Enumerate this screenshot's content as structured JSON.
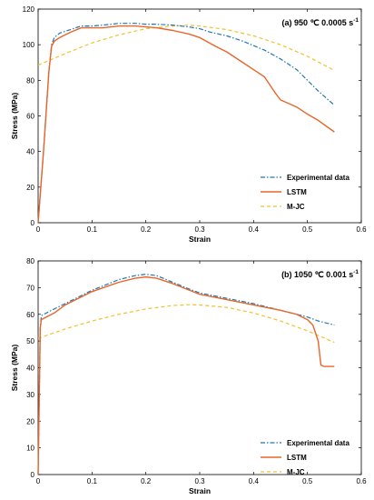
{
  "chart_data": [
    {
      "type": "line",
      "title_prefix": "(a) 950 ℃ 0.0005 s",
      "title_sup": "-1",
      "xlabel": "Strain",
      "ylabel": "Stress (MPa)",
      "xlim": [
        0,
        0.6
      ],
      "ylim": [
        0,
        120
      ],
      "xticks": [
        "0",
        "0.1",
        "0.2",
        "0.3",
        "0.4",
        "0.5",
        "0.6"
      ],
      "yticks": [
        "0",
        "20",
        "40",
        "60",
        "80",
        "100",
        "120"
      ],
      "legend_position": "lower-right",
      "series": [
        {
          "name": "Experimental data",
          "color": "#1f77b4",
          "style": "dashdot",
          "x": [
            0,
            0.01,
            0.02,
            0.025,
            0.03,
            0.04,
            0.05,
            0.06,
            0.08,
            0.1,
            0.12,
            0.15,
            0.18,
            0.2,
            0.22,
            0.25,
            0.28,
            0.3,
            0.32,
            0.35,
            0.38,
            0.4,
            0.42,
            0.45,
            0.48,
            0.5,
            0.52,
            0.55
          ],
          "y": [
            0,
            40,
            85,
            100,
            104,
            106.5,
            107.5,
            108.5,
            110.5,
            110.5,
            111,
            112,
            112,
            111.5,
            111.5,
            111,
            110,
            109,
            107,
            105,
            102,
            99.5,
            97,
            92,
            86,
            80,
            74,
            66
          ]
        },
        {
          "name": "LSTM",
          "color": "#e8652a",
          "style": "solid",
          "x": [
            0,
            0.01,
            0.02,
            0.025,
            0.03,
            0.04,
            0.05,
            0.06,
            0.08,
            0.1,
            0.12,
            0.15,
            0.18,
            0.2,
            0.22,
            0.25,
            0.28,
            0.3,
            0.33,
            0.35,
            0.38,
            0.4,
            0.42,
            0.44,
            0.45,
            0.48,
            0.5,
            0.52,
            0.55
          ],
          "y": [
            0,
            40,
            85,
            99,
            102,
            104,
            105.5,
            107,
            109.5,
            109.5,
            109.5,
            110.5,
            110.5,
            110,
            109.5,
            108,
            106,
            104,
            99,
            96,
            90,
            86,
            82,
            73,
            69,
            65,
            61,
            57.5,
            51
          ]
        },
        {
          "name": "M-JC",
          "color": "#f2c12e",
          "style": "dashed",
          "x": [
            0,
            0.05,
            0.1,
            0.15,
            0.2,
            0.25,
            0.28,
            0.3,
            0.35,
            0.4,
            0.45,
            0.5,
            0.55
          ],
          "y": [
            88.5,
            95,
            101,
            105.5,
            109,
            110.5,
            111,
            110.5,
            108.5,
            105,
            100,
            93.5,
            85.5
          ]
        }
      ]
    },
    {
      "type": "line",
      "title_prefix": "(b) 1050 ℃ 0.001 s",
      "title_sup": "-1",
      "xlabel": "Strain",
      "ylabel": "Stress (MPa)",
      "xlim": [
        0,
        0.6
      ],
      "ylim": [
        0,
        80
      ],
      "xticks": [
        "0",
        "0.1",
        "0.2",
        "0.3",
        "0.4",
        "0.5",
        "0.6"
      ],
      "yticks": [
        "0",
        "10",
        "20",
        "30",
        "40",
        "50",
        "60",
        "70",
        "80"
      ],
      "legend_position": "lower-right",
      "series": [
        {
          "name": "Experimental data",
          "color": "#1f77b4",
          "style": "dashdot",
          "x": [
            0,
            0.004,
            0.006,
            0.02,
            0.05,
            0.1,
            0.15,
            0.18,
            0.2,
            0.22,
            0.25,
            0.28,
            0.3,
            0.35,
            0.4,
            0.45,
            0.5,
            0.52,
            0.55
          ],
          "y": [
            0,
            55,
            59.5,
            61,
            64,
            69,
            73,
            74.5,
            75,
            74.5,
            72,
            69.5,
            68,
            66,
            64,
            61.5,
            59,
            57.5,
            56
          ]
        },
        {
          "name": "LSTM",
          "color": "#e8652a",
          "style": "solid",
          "x": [
            0,
            0.004,
            0.006,
            0.02,
            0.03,
            0.05,
            0.1,
            0.15,
            0.18,
            0.2,
            0.22,
            0.25,
            0.3,
            0.35,
            0.4,
            0.45,
            0.48,
            0.5,
            0.51,
            0.52,
            0.525,
            0.53,
            0.55
          ],
          "y": [
            0,
            55,
            58,
            59.5,
            60.5,
            63.5,
            68.5,
            72,
            73.5,
            74,
            73.5,
            71.5,
            67.5,
            65.5,
            63.5,
            61.5,
            60,
            58,
            56,
            50,
            41,
            40.5,
            40.5
          ]
        },
        {
          "name": "M-JC",
          "color": "#f2c12e",
          "style": "dashed",
          "x": [
            0,
            0.05,
            0.1,
            0.15,
            0.2,
            0.25,
            0.28,
            0.3,
            0.35,
            0.4,
            0.45,
            0.5,
            0.55
          ],
          "y": [
            51,
            54.5,
            57.5,
            60,
            62,
            63.3,
            63.6,
            63.5,
            62.6,
            60.5,
            57.5,
            53.8,
            49.5
          ]
        }
      ]
    }
  ]
}
